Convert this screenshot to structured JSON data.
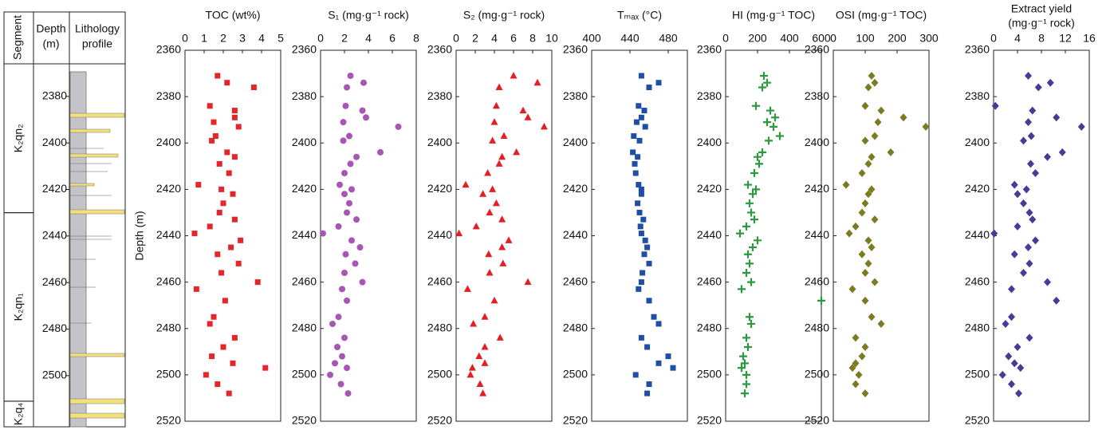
{
  "lithology": {
    "headers": [
      [
        "Segment"
      ],
      [
        "Depth",
        "(m)"
      ],
      [
        "Lithology",
        "profile"
      ]
    ],
    "depth_range": [
      2366,
      2522
    ],
    "depth_ticks": [
      2380,
      2400,
      2420,
      2440,
      2460,
      2480,
      2500
    ],
    "segments": [
      {
        "name": "K₂qn₂",
        "top": 2366,
        "bottom": 2430
      },
      {
        "name": "K₂qn₁",
        "top": 2430,
        "bottom": 2511
      },
      {
        "name": "K₂q₄",
        "top": 2511,
        "bottom": 2522
      }
    ]
  },
  "chart_data": [
    {
      "type": "scatter",
      "title": [
        "TOC (wt%)"
      ],
      "ylabel": "Depth (m)",
      "marker": "square",
      "color": "#e3262b",
      "xlim": [
        0,
        5
      ],
      "xticks": [
        0,
        1,
        2,
        3,
        4,
        5
      ],
      "ylim": [
        2360,
        2520
      ],
      "yticks": [
        2360,
        2380,
        2400,
        2420,
        2440,
        2460,
        2480,
        2500,
        2520
      ],
      "y": [
        2371,
        2374,
        2376,
        2384,
        2386,
        2389,
        2391,
        2393,
        2397,
        2399,
        2404,
        2406,
        2409,
        2413,
        2418,
        2420,
        2422,
        2426,
        2430,
        2433,
        2436,
        2439,
        2442,
        2445,
        2448,
        2452,
        2456,
        2460,
        2463,
        2468,
        2475,
        2478,
        2484,
        2488,
        2492,
        2495,
        2497,
        2500,
        2504,
        2508
      ],
      "x": [
        1.7,
        2.2,
        3.6,
        1.3,
        2.6,
        2.6,
        1.5,
        2.8,
        1.6,
        1.4,
        2.2,
        2.6,
        1.8,
        2.3,
        0.7,
        1.9,
        2.5,
        2.0,
        1.8,
        2.6,
        1.3,
        0.5,
        2.9,
        2.4,
        1.7,
        2.8,
        1.9,
        3.8,
        0.6,
        2.1,
        1.5,
        1.3,
        2.6,
        2.0,
        1.4,
        2.5,
        4.2,
        1.1,
        1.7,
        2.3
      ]
    },
    {
      "type": "scatter",
      "title": [
        "S₁ (mg·g⁻¹ rock)"
      ],
      "marker": "circle",
      "color": "#a855b5",
      "xlim": [
        0,
        8
      ],
      "xticks": [
        0,
        2,
        4,
        6,
        8
      ],
      "ylim": [
        2360,
        2520
      ],
      "yticks": [
        2360,
        2380,
        2400,
        2420,
        2440,
        2460,
        2480,
        2500,
        2520
      ],
      "y": [
        2371,
        2374,
        2376,
        2384,
        2386,
        2389,
        2391,
        2393,
        2397,
        2399,
        2404,
        2406,
        2409,
        2413,
        2418,
        2420,
        2422,
        2426,
        2430,
        2433,
        2436,
        2439,
        2442,
        2445,
        2448,
        2452,
        2456,
        2460,
        2463,
        2468,
        2475,
        2478,
        2484,
        2488,
        2492,
        2495,
        2497,
        2500,
        2504,
        2508
      ],
      "x": [
        2.5,
        3.6,
        2.2,
        2.1,
        3.5,
        3.8,
        1.9,
        6.5,
        2.4,
        1.9,
        5.0,
        3.0,
        2.5,
        2.0,
        1.6,
        2.6,
        2.0,
        2.4,
        2.2,
        3.0,
        1.5,
        0.2,
        2.6,
        3.3,
        2.1,
        2.9,
        2.0,
        3.5,
        1.8,
        2.2,
        1.5,
        1.0,
        2.0,
        1.4,
        1.8,
        1.2,
        2.2,
        0.8,
        1.7,
        2.3
      ]
    },
    {
      "type": "scatter",
      "title": [
        "S₂ (mg·g⁻¹ rock)"
      ],
      "marker": "triangle",
      "color": "#e31e24",
      "xlim": [
        0,
        10
      ],
      "xticks": [
        0,
        2,
        4,
        6,
        8,
        10
      ],
      "ylim": [
        2360,
        2520
      ],
      "yticks": [
        2360,
        2380,
        2400,
        2420,
        2440,
        2460,
        2480,
        2500,
        2520
      ],
      "y": [
        2371,
        2374,
        2376,
        2384,
        2386,
        2389,
        2391,
        2393,
        2397,
        2399,
        2404,
        2406,
        2409,
        2413,
        2418,
        2420,
        2422,
        2426,
        2430,
        2433,
        2436,
        2439,
        2442,
        2445,
        2448,
        2452,
        2456,
        2460,
        2463,
        2468,
        2475,
        2478,
        2484,
        2488,
        2492,
        2495,
        2497,
        2500,
        2504,
        2508
      ],
      "x": [
        6.0,
        8.5,
        4.5,
        4.2,
        7.0,
        7.5,
        4.0,
        9.2,
        5.0,
        3.8,
        6.3,
        4.8,
        4.5,
        3.3,
        1.0,
        3.8,
        2.8,
        4.2,
        3.5,
        4.8,
        2.1,
        0.3,
        5.5,
        4.8,
        3.4,
        4.9,
        3.5,
        7.5,
        1.2,
        4.0,
        3.0,
        1.8,
        4.6,
        3.0,
        2.4,
        3.0,
        1.7,
        1.5,
        2.5,
        2.8
      ]
    },
    {
      "type": "scatter",
      "title": [
        "Tₘₐₓ (°C)"
      ],
      "marker": "square",
      "color": "#1f4ea6",
      "xlim": [
        400,
        500
      ],
      "xticks": [
        400,
        440,
        480
      ],
      "ylim": [
        2360,
        2520
      ],
      "yticks": [
        2360,
        2380,
        2400,
        2420,
        2440,
        2460,
        2480,
        2500,
        2520
      ],
      "y": [
        2371,
        2374,
        2376,
        2384,
        2386,
        2389,
        2391,
        2393,
        2397,
        2399,
        2404,
        2406,
        2409,
        2413,
        2418,
        2420,
        2422,
        2426,
        2430,
        2433,
        2436,
        2439,
        2442,
        2445,
        2448,
        2452,
        2456,
        2460,
        2463,
        2468,
        2475,
        2478,
        2484,
        2488,
        2492,
        2495,
        2497,
        2500,
        2504,
        2508
      ],
      "x": [
        452,
        470,
        460,
        449,
        455,
        452,
        447,
        456,
        444,
        450,
        443,
        448,
        445,
        446,
        449,
        452,
        452,
        448,
        450,
        454,
        451,
        452,
        456,
        458,
        455,
        460,
        453,
        452,
        449,
        460,
        465,
        470,
        452,
        458,
        480,
        470,
        485,
        446,
        460,
        458
      ]
    },
    {
      "type": "scatter",
      "title": [
        "HI (mg·g⁻¹ TOC)"
      ],
      "marker": "plus",
      "color": "#2b9a3c",
      "xlim": [
        0,
        600
      ],
      "xticks": [
        0,
        200,
        400,
        600
      ],
      "ylim": [
        2360,
        2520
      ],
      "yticks": [
        2360,
        2380,
        2400,
        2420,
        2440,
        2460,
        2480,
        2500,
        2520
      ],
      "y": [
        2371,
        2374,
        2376,
        2384,
        2386,
        2389,
        2391,
        2393,
        2397,
        2399,
        2404,
        2406,
        2409,
        2413,
        2418,
        2420,
        2422,
        2426,
        2430,
        2433,
        2436,
        2439,
        2442,
        2445,
        2448,
        2452,
        2456,
        2460,
        2463,
        2468,
        2475,
        2478,
        2484,
        2488,
        2492,
        2495,
        2497,
        2500,
        2504,
        2508
      ],
      "x": [
        240,
        260,
        230,
        190,
        280,
        310,
        260,
        300,
        340,
        270,
        230,
        200,
        210,
        180,
        140,
        190,
        170,
        150,
        160,
        180,
        130,
        90,
        200,
        170,
        140,
        150,
        130,
        160,
        100,
        600,
        150,
        160,
        130,
        140,
        110,
        120,
        100,
        130,
        130,
        120
      ]
    },
    {
      "type": "scatter",
      "title": [
        "OSI (mg·g⁻¹ TOC)"
      ],
      "marker": "diamond",
      "color": "#7b7b22",
      "xlim": [
        0,
        300
      ],
      "xticks": [
        0,
        100,
        200,
        300
      ],
      "ylim": [
        2360,
        2520
      ],
      "yticks": [
        2360,
        2380,
        2400,
        2420,
        2440,
        2460,
        2480,
        2500,
        2520
      ],
      "y": [
        2371,
        2374,
        2376,
        2384,
        2386,
        2389,
        2391,
        2393,
        2397,
        2399,
        2404,
        2406,
        2409,
        2413,
        2418,
        2420,
        2422,
        2426,
        2430,
        2433,
        2436,
        2439,
        2442,
        2445,
        2448,
        2452,
        2456,
        2460,
        2463,
        2468,
        2475,
        2478,
        2484,
        2488,
        2492,
        2495,
        2497,
        2500,
        2504,
        2508
      ],
      "x": [
        120,
        130,
        110,
        100,
        150,
        220,
        140,
        290,
        130,
        100,
        180,
        120,
        110,
        90,
        40,
        120,
        110,
        100,
        90,
        130,
        70,
        50,
        110,
        120,
        90,
        110,
        100,
        130,
        60,
        100,
        120,
        150,
        70,
        100,
        90,
        70,
        60,
        80,
        70,
        100
      ]
    },
    {
      "type": "scatter",
      "title": [
        "Extract yield",
        "(mg·g⁻¹ rock)"
      ],
      "marker": "diamond",
      "color": "#4a3a98",
      "xlim": [
        0,
        16
      ],
      "xticks": [
        0,
        4,
        8,
        12,
        16
      ],
      "ylim": [
        2360,
        2520
      ],
      "yticks": [
        2360,
        2380,
        2400,
        2420,
        2440,
        2460,
        2480,
        2500,
        2520
      ],
      "y": [
        2371,
        2374,
        2376,
        2384,
        2386,
        2389,
        2391,
        2393,
        2397,
        2399,
        2404,
        2406,
        2409,
        2413,
        2418,
        2420,
        2422,
        2426,
        2430,
        2433,
        2436,
        2439,
        2442,
        2445,
        2448,
        2452,
        2456,
        2460,
        2463,
        2468,
        2475,
        2478,
        2484,
        2488,
        2492,
        2495,
        2497,
        2500,
        2504,
        2508
      ],
      "x": [
        5.8,
        9.5,
        7.5,
        0.3,
        6.5,
        10.5,
        5.8,
        14.7,
        6.3,
        5.0,
        11.5,
        9.0,
        6.2,
        7.0,
        3.5,
        5.5,
        4.0,
        5.0,
        6.0,
        6.5,
        4.0,
        0.1,
        7.0,
        5.8,
        3.5,
        6.0,
        5.0,
        9.0,
        3.0,
        10.5,
        3.0,
        2.0,
        6.0,
        4.0,
        2.5,
        3.5,
        4.5,
        1.5,
        3.0,
        4.2
      ]
    }
  ]
}
